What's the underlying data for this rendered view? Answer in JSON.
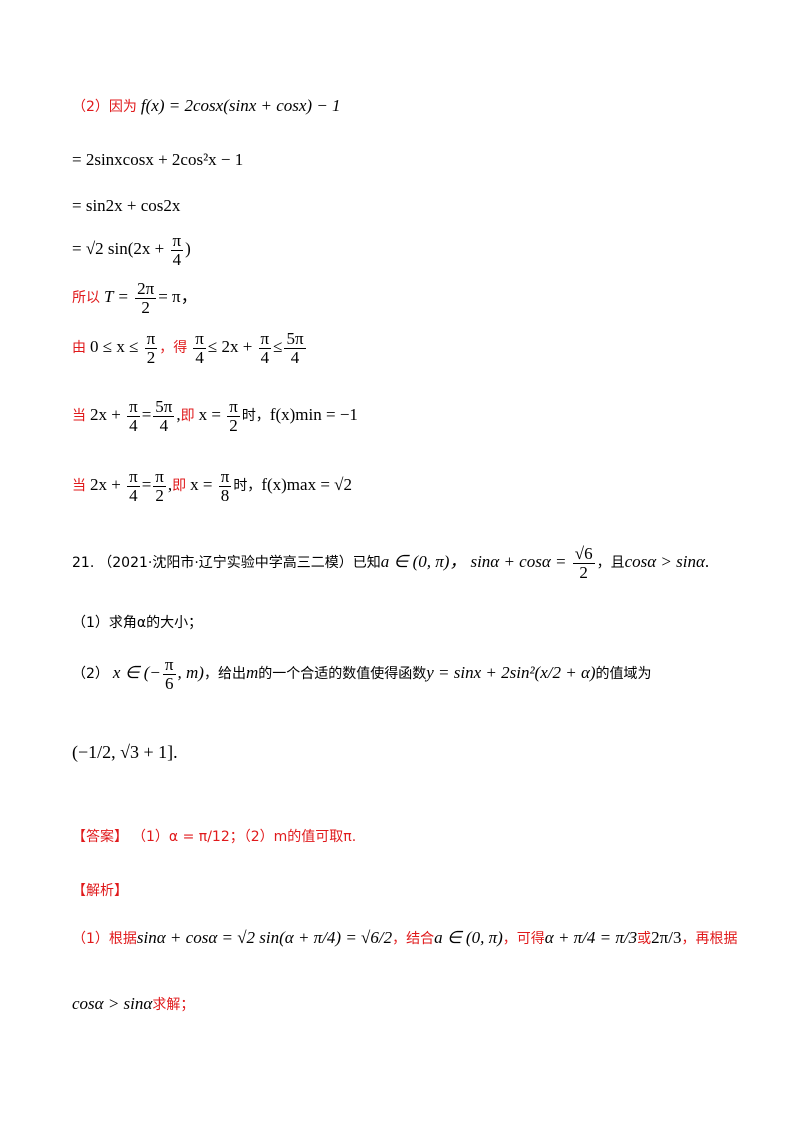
{
  "part2": {
    "label": "（2）因为",
    "eq0": "f(x) = 2cosx(sinx + cosx) − 1",
    "eq1": "= 2sinxcosx + 2cos²x − 1",
    "eq2": "= sin2x + cos2x",
    "eq3_pre": "= √2 sin(2x + ",
    "eq3_num": "π",
    "eq3_den": "4",
    "eq3_post": ")",
    "so_label": "所以",
    "period_pre": "T = ",
    "period_num": "2π",
    "period_den": "2",
    "period_post": "= π，",
    "from_label": "由",
    "range_pre": "0 ≤ x ≤ ",
    "range_num": "π",
    "range_den": "2",
    "get_label": "，得",
    "range2_num1": "π",
    "range2_den1": "4",
    "range2_mid": "≤ 2x + ",
    "range2_num2": "π",
    "range2_den2": "4",
    "range2_le": "≤",
    "range2_num3": "5π",
    "range2_den3": "4",
    "when_label": "当",
    "min_pre": "2x + ",
    "min_num1": "π",
    "min_den1": "4",
    "min_eq": "=",
    "min_num2": "5π",
    "min_den2": "4",
    "min_comma": ",",
    "ie_label": "即",
    "min_x": "x = ",
    "min_num3": "π",
    "min_den3": "2",
    "min_time": "时，",
    "min_result": "f(x)min = −1",
    "max_pre": "2x + ",
    "max_num1": "π",
    "max_den1": "4",
    "max_eq": "=",
    "max_num2": "π",
    "max_den2": "2",
    "max_comma": ",",
    "max_x": "x = ",
    "max_num3": "π",
    "max_den3": "8",
    "max_time": "时，",
    "max_result": "f(x)max = √2"
  },
  "q21": {
    "number": "21.",
    "source": "（2021·沈阳市·辽宁实验中学高三二模）已知",
    "cond1": "a ∈ (0, π)，",
    "cond2_pre": "sinα + cosα = ",
    "cond2_num": "√6",
    "cond2_den": "2",
    "and_label": "，且",
    "cond3": "cosα > sinα",
    "cond3_end": ".",
    "sub1": "（1）求角α的大小；",
    "sub2_label": "（2）",
    "sub2_x": "x ∈ (−",
    "sub2_num": "π",
    "sub2_den": "6",
    "sub2_m": ", m)",
    "sub2_text1": "，给出",
    "sub2_mvar": "m",
    "sub2_text2": "的一个合适的数值使得函数",
    "sub2_fn": "y = sinx + 2sin²(x/2 + α)",
    "sub2_text3": "的值域为",
    "range": "(−1/2, √3 + 1].",
    "answer_label": "【答案】",
    "answer1": "（1）α = π/12；（2）m的值可取π.",
    "analysis_label": "【解析】",
    "analysis1_pre": "（1）根据",
    "analysis1_eq": "sinα + cosα = √2 sin(α + π/4) = √6/2",
    "analysis1_mid": "，结合",
    "analysis1_cond": "a ∈ (0, π)",
    "analysis1_can": "，可得",
    "analysis1_res": "α + π/4 = π/3",
    "analysis1_or": "或",
    "analysis1_res2": "2π/3",
    "analysis1_then": "，再根据",
    "analysis2_eq": "cosα > sinα",
    "analysis2_end": "求解；"
  }
}
